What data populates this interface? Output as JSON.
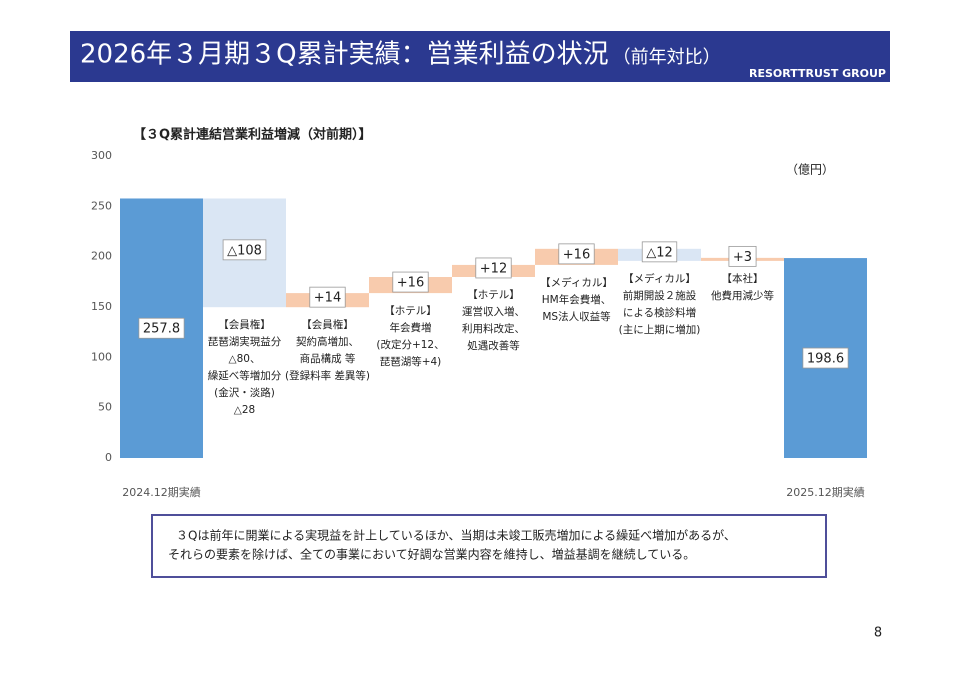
{
  "header": {
    "title": "2026年３月期３Q累計実績：営業利益の状況",
    "title_note": "（前年対比）",
    "brand": "RESORTTRUST GROUP"
  },
  "chart_data": {
    "type": "waterfall",
    "title": "【３Q累計連結営業利益増減（対前期）】",
    "unit_label": "（億円）",
    "categories": [
      "2024.12期実績",
      null,
      null,
      null,
      null,
      null,
      null,
      null,
      "2025.12期実績"
    ],
    "is_total": [
      true,
      false,
      false,
      false,
      false,
      false,
      false,
      false,
      true
    ],
    "values": [
      257.8,
      -108,
      14,
      16,
      12,
      16,
      -12,
      3,
      198.6
    ],
    "value_labels": [
      "257.8",
      "△108",
      "+14",
      "+16",
      "+12",
      "+16",
      "△12",
      "+3",
      "198.6"
    ],
    "annotations": [
      [
        "【会員権】",
        "琵琶湖実現益分",
        "△80、",
        "繰延べ等増加分",
        "(金沢・淡路)",
        "△28"
      ],
      [
        "【会員権】",
        "契約高増加、",
        "商品構成 等",
        "(登録料率 差異等)"
      ],
      [
        "【ホテル】",
        "年会費増",
        "(改定分+12、",
        "琵琶湖等+4)"
      ],
      [
        "【ホテル】",
        "運営収入増、",
        "利用料改定、",
        "処遇改善等"
      ],
      [
        "【メディカル】",
        "HM年会費増、",
        "MS法人収益等"
      ],
      [
        "【メディカル】",
        "前期開設２施設",
        "による検診料増",
        "(主に上期に増加)"
      ],
      [
        "【本社】",
        "他費用減少等"
      ]
    ],
    "ylim": [
      0,
      300
    ],
    "yticks": [
      0,
      50,
      100,
      150,
      200,
      250,
      300
    ],
    "grid": false,
    "total_color": "#5b9bd5",
    "increase_color": "#f8cbad",
    "decrease_color": "#dae6f4"
  },
  "footnote": [
    "３Qは前年に開業による実現益を計上しているほか、当期は未竣工販売増加による繰延べ増加があるが、",
    "それらの要素を除けば、全ての事業において好調な営業内容を維持し、増益基調を継続している。"
  ],
  "page_number": "8"
}
